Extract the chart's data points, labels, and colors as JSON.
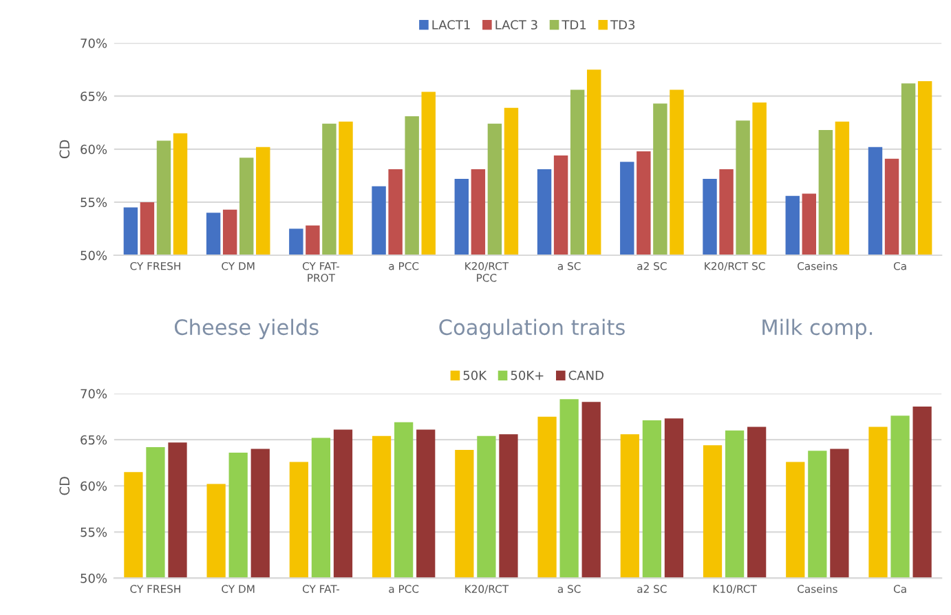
{
  "chart_data": [
    {
      "type": "bar",
      "ylabel": "CD",
      "categories": [
        "CY FRESH",
        "CY DM",
        "CY FAT-\nPROT",
        "a PCC",
        "K20/RCT\nPCC",
        "a SC",
        "a2 SC",
        "K20/RCT SC",
        "Caseins",
        "Ca"
      ],
      "series": [
        {
          "name": "LACT1",
          "color": "#4472c4",
          "values": [
            54.5,
            54,
            52.5,
            56.5,
            57.2,
            58.1,
            58.8,
            57.2,
            55.6,
            60.2
          ]
        },
        {
          "name": "LACT 3",
          "color": "#c0504d",
          "values": [
            55,
            54.3,
            52.8,
            58.1,
            58.1,
            59.4,
            59.8,
            58.1,
            55.8,
            59.1
          ]
        },
        {
          "name": "TD1",
          "color": "#9bbb59",
          "values": [
            60.8,
            59.2,
            62.4,
            63.1,
            62.4,
            65.6,
            64.3,
            62.7,
            61.8,
            66.2
          ]
        },
        {
          "name": "TD3",
          "color": "#f5c200",
          "values": [
            61.5,
            60.2,
            62.6,
            65.4,
            63.9,
            67.5,
            65.6,
            64.4,
            62.6,
            66.4
          ]
        }
      ],
      "ylim": [
        50,
        70
      ],
      "yticks": [
        {
          "value": 50,
          "label": "50%"
        },
        {
          "value": 55,
          "label": "55%"
        },
        {
          "value": 60,
          "label": "60%"
        },
        {
          "value": 65,
          "label": "65%"
        },
        {
          "value": 70,
          "label": "70%"
        }
      ],
      "grid": "y",
      "legend": "top",
      "annotations": [
        "Cheese yields",
        "Coagulation traits",
        "Milk comp."
      ]
    },
    {
      "type": "bar",
      "ylabel": "CD",
      "categories": [
        "CY FRESH",
        "CY DM",
        "CY FAT-",
        "a PCC",
        "K20/RCT",
        "a SC",
        "a2 SC",
        "K10/RCT",
        "Caseins",
        "Ca"
      ],
      "series": [
        {
          "name": "50K",
          "color": "#f5c200",
          "values": [
            61.5,
            60.2,
            62.6,
            65.4,
            63.9,
            67.5,
            65.6,
            64.4,
            62.6,
            66.4
          ]
        },
        {
          "name": "50K+",
          "color": "#92d050",
          "values": [
            64.2,
            63.6,
            65.2,
            66.9,
            65.4,
            69.4,
            67.1,
            66.0,
            63.8,
            67.6
          ]
        },
        {
          "name": "CAND",
          "color": "#953735",
          "values": [
            64.7,
            64.0,
            66.1,
            66.1,
            65.6,
            69.1,
            67.3,
            66.4,
            64.0,
            68.6
          ]
        }
      ],
      "ylim": [
        50,
        70
      ],
      "yticks": [
        {
          "value": 50,
          "label": "50%"
        },
        {
          "value": 55,
          "label": "55%"
        },
        {
          "value": 60,
          "label": "60%"
        },
        {
          "value": 65,
          "label": "65%"
        },
        {
          "value": 70,
          "label": "70%"
        }
      ],
      "grid": "y",
      "legend": "top"
    }
  ]
}
